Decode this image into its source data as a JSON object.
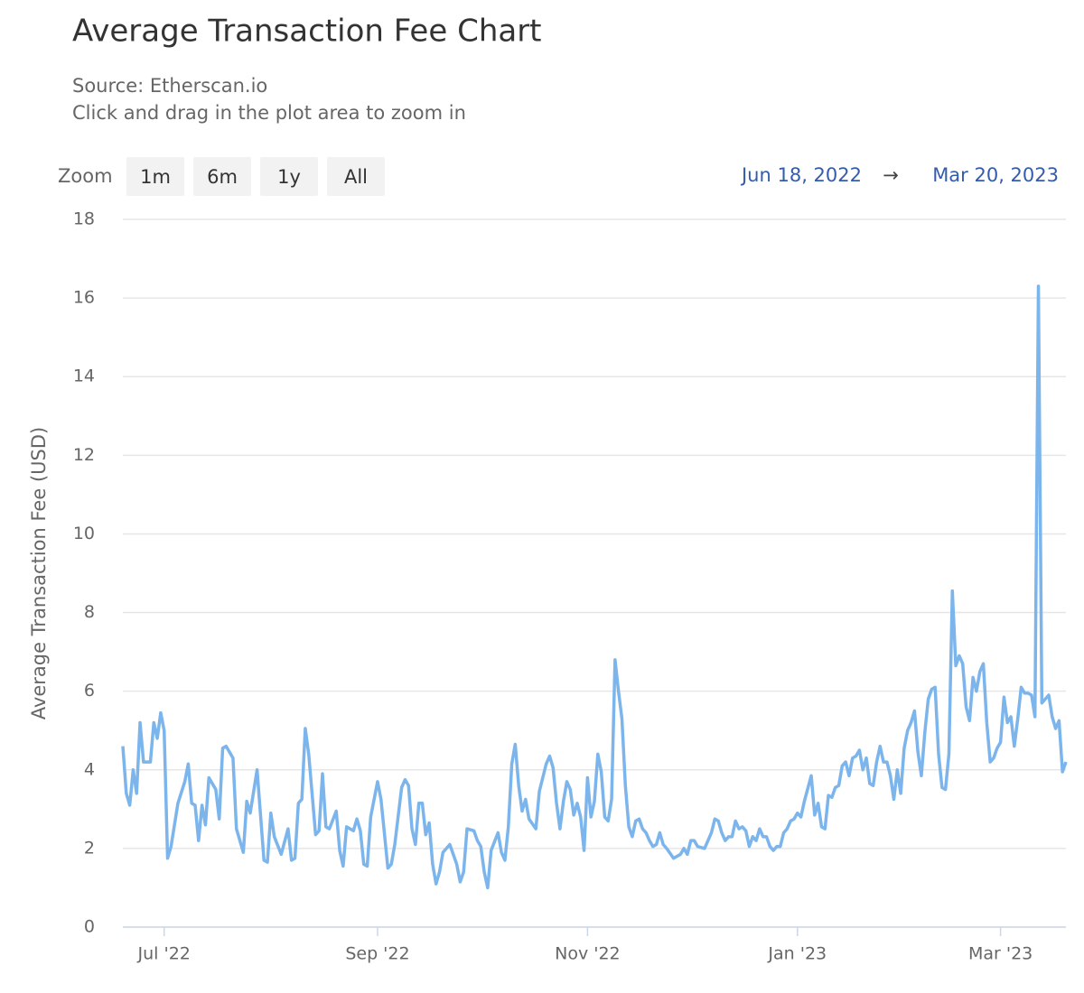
{
  "chart_data": {
    "type": "line",
    "title": "Average Transaction Fee Chart",
    "subtitle": [
      "Source: Etherscan.io",
      "Click and drag in the plot area to zoom in"
    ],
    "zoom_label": "Zoom",
    "zoom_buttons": [
      "1m",
      "6m",
      "1y",
      "All"
    ],
    "range_start": "Jun 18, 2022",
    "range_separator": "→",
    "range_end": "Mar 20, 2023",
    "y_label": "Average Transaction Fee (USD)",
    "color": "#7cb5ec",
    "grid": true,
    "xlim": [
      "2022-06-19",
      "2023-03-20"
    ],
    "xticks": [
      {
        "value": "2022-07-01",
        "label": "Jul '22"
      },
      {
        "value": "2022-09-01",
        "label": "Sep '22"
      },
      {
        "value": "2022-11-01",
        "label": "Nov '22"
      },
      {
        "value": "2023-01-01",
        "label": "Jan '23"
      },
      {
        "value": "2023-03-01",
        "label": "Mar '23"
      }
    ],
    "ylim": [
      0,
      18
    ],
    "yticks": [
      0,
      2,
      4,
      6,
      8,
      10,
      12,
      14,
      16,
      18
    ],
    "x": [
      "2022-06-19",
      "2022-06-20",
      "2022-06-21",
      "2022-06-22",
      "2022-06-23",
      "2022-06-24",
      "2022-06-25",
      "2022-06-27",
      "2022-06-28",
      "2022-06-29",
      "2022-06-30",
      "2022-07-01",
      "2022-07-02",
      "2022-07-03",
      "2022-07-05",
      "2022-07-07",
      "2022-07-08",
      "2022-07-09",
      "2022-07-10",
      "2022-07-11",
      "2022-07-12",
      "2022-07-13",
      "2022-07-14",
      "2022-07-16",
      "2022-07-17",
      "2022-07-18",
      "2022-07-19",
      "2022-07-21",
      "2022-07-22",
      "2022-07-24",
      "2022-07-25",
      "2022-07-26",
      "2022-07-28",
      "2022-07-30",
      "2022-07-31",
      "2022-08-01",
      "2022-08-02",
      "2022-08-04",
      "2022-08-06",
      "2022-08-07",
      "2022-08-08",
      "2022-08-09",
      "2022-08-10",
      "2022-08-11",
      "2022-08-12",
      "2022-08-14",
      "2022-08-15",
      "2022-08-16",
      "2022-08-17",
      "2022-08-18",
      "2022-08-20",
      "2022-08-21",
      "2022-08-22",
      "2022-08-23",
      "2022-08-25",
      "2022-08-26",
      "2022-08-27",
      "2022-08-28",
      "2022-08-29",
      "2022-08-30",
      "2022-09-01",
      "2022-09-02",
      "2022-09-04",
      "2022-09-05",
      "2022-09-06",
      "2022-09-08",
      "2022-09-09",
      "2022-09-10",
      "2022-09-11",
      "2022-09-12",
      "2022-09-13",
      "2022-09-14",
      "2022-09-15",
      "2022-09-16",
      "2022-09-17",
      "2022-09-18",
      "2022-09-19",
      "2022-09-20",
      "2022-09-22",
      "2022-09-23",
      "2022-09-24",
      "2022-09-25",
      "2022-09-26",
      "2022-09-27",
      "2022-09-29",
      "2022-09-30",
      "2022-10-01",
      "2022-10-02",
      "2022-10-03",
      "2022-10-04",
      "2022-10-06",
      "2022-10-07",
      "2022-10-08",
      "2022-10-09",
      "2022-10-10",
      "2022-10-11",
      "2022-10-12",
      "2022-10-13",
      "2022-10-14",
      "2022-10-15",
      "2022-10-17",
      "2022-10-18",
      "2022-10-20",
      "2022-10-21",
      "2022-10-22",
      "2022-10-23",
      "2022-10-24",
      "2022-10-25",
      "2022-10-26",
      "2022-10-27",
      "2022-10-28",
      "2022-10-29",
      "2022-10-30",
      "2022-10-31",
      "2022-11-01",
      "2022-11-02",
      "2022-11-03",
      "2022-11-04",
      "2022-11-05",
      "2022-11-06",
      "2022-11-07",
      "2022-11-08",
      "2022-11-09",
      "2022-11-10",
      "2022-11-11",
      "2022-11-12",
      "2022-11-13",
      "2022-11-14",
      "2022-11-15",
      "2022-11-16",
      "2022-11-17",
      "2022-11-18",
      "2022-11-19",
      "2022-11-20",
      "2022-11-21",
      "2022-11-22",
      "2022-11-23",
      "2022-11-24",
      "2022-11-26",
      "2022-11-28",
      "2022-11-29",
      "2022-11-30",
      "2022-12-01",
      "2022-12-02",
      "2022-12-03",
      "2022-12-05",
      "2022-12-06",
      "2022-12-07",
      "2022-12-08",
      "2022-12-09",
      "2022-12-10",
      "2022-12-11",
      "2022-12-12",
      "2022-12-13",
      "2022-12-14",
      "2022-12-15",
      "2022-12-16",
      "2022-12-17",
      "2022-12-18",
      "2022-12-19",
      "2022-12-20",
      "2022-12-21",
      "2022-12-22",
      "2022-12-23",
      "2022-12-24",
      "2022-12-25",
      "2022-12-26",
      "2022-12-27",
      "2022-12-28",
      "2022-12-29",
      "2022-12-30",
      "2022-12-31",
      "2023-01-01",
      "2023-01-02",
      "2023-01-03",
      "2023-01-05",
      "2023-01-06",
      "2023-01-07",
      "2023-01-08",
      "2023-01-09",
      "2023-01-10",
      "2023-01-11",
      "2023-01-12",
      "2023-01-13",
      "2023-01-14",
      "2023-01-15",
      "2023-01-16",
      "2023-01-17",
      "2023-01-18",
      "2023-01-19",
      "2023-01-20",
      "2023-01-21",
      "2023-01-22",
      "2023-01-23",
      "2023-01-24",
      "2023-01-25",
      "2023-01-26",
      "2023-01-27",
      "2023-01-28",
      "2023-01-29",
      "2023-01-30",
      "2023-01-31",
      "2023-02-01",
      "2023-02-02",
      "2023-02-03",
      "2023-02-04",
      "2023-02-05",
      "2023-02-06",
      "2023-02-07",
      "2023-02-08",
      "2023-02-09",
      "2023-02-10",
      "2023-02-11",
      "2023-02-12",
      "2023-02-13",
      "2023-02-14",
      "2023-02-15",
      "2023-02-16",
      "2023-02-17",
      "2023-02-18",
      "2023-02-19",
      "2023-02-20",
      "2023-02-21",
      "2023-02-22",
      "2023-02-23",
      "2023-02-24",
      "2023-02-25",
      "2023-02-26",
      "2023-02-27",
      "2023-02-28",
      "2023-03-01",
      "2023-03-02",
      "2023-03-03",
      "2023-03-04",
      "2023-03-05",
      "2023-03-06",
      "2023-03-07",
      "2023-03-08",
      "2023-03-09",
      "2023-03-10",
      "2023-03-11",
      "2023-03-12",
      "2023-03-13",
      "2023-03-14",
      "2023-03-15",
      "2023-03-16",
      "2023-03-17",
      "2023-03-18",
      "2023-03-19",
      "2023-03-20"
    ],
    "values": [
      4.6,
      3.4,
      3.1,
      4.0,
      3.4,
      5.2,
      4.2,
      4.2,
      5.2,
      4.8,
      5.45,
      5.0,
      1.75,
      2.05,
      3.15,
      3.7,
      4.15,
      3.15,
      3.1,
      2.2,
      3.1,
      2.6,
      3.8,
      3.5,
      2.75,
      4.55,
      4.6,
      4.3,
      2.5,
      1.9,
      3.2,
      2.9,
      4.0,
      1.7,
      1.65,
      2.9,
      2.3,
      1.85,
      2.5,
      1.7,
      1.75,
      3.15,
      3.25,
      5.05,
      4.4,
      2.35,
      2.45,
      3.9,
      2.55,
      2.5,
      2.95,
      1.95,
      1.55,
      2.55,
      2.45,
      2.75,
      2.45,
      1.6,
      1.55,
      2.8,
      3.7,
      3.25,
      1.5,
      1.6,
      2.1,
      3.55,
      3.75,
      3.6,
      2.5,
      2.1,
      3.15,
      3.15,
      2.35,
      2.65,
      1.6,
      1.1,
      1.4,
      1.9,
      2.1,
      1.85,
      1.6,
      1.15,
      1.4,
      2.5,
      2.45,
      2.2,
      2.05,
      1.4,
      1.0,
      1.95,
      2.4,
      1.9,
      1.7,
      2.55,
      4.15,
      4.65,
      3.6,
      2.95,
      3.25,
      2.75,
      2.5,
      3.45,
      4.15,
      4.35,
      4.05,
      3.15,
      2.5,
      3.2,
      3.7,
      3.5,
      2.85,
      3.15,
      2.8,
      1.95,
      3.8,
      2.8,
      3.2,
      4.4,
      3.95,
      2.8,
      2.7,
      3.25,
      6.8,
      6.0,
      5.3,
      3.6,
      2.55,
      2.3,
      2.7,
      2.75,
      2.5,
      2.4,
      2.2,
      2.05,
      2.1,
      2.4,
      2.1,
      2.0,
      1.75,
      1.85,
      2.0,
      1.85,
      2.2,
      2.2,
      2.05,
      2.0,
      2.2,
      2.4,
      2.75,
      2.7,
      2.4,
      2.2,
      2.3,
      2.3,
      2.7,
      2.5,
      2.55,
      2.45,
      2.05,
      2.3,
      2.2,
      2.5,
      2.3,
      2.3,
      2.05,
      1.95,
      2.05,
      2.05,
      2.4,
      2.5,
      2.7,
      2.75,
      2.9,
      2.8,
      3.2,
      3.85,
      2.85,
      3.15,
      2.55,
      2.5,
      3.35,
      3.3,
      3.55,
      3.6,
      4.1,
      4.2,
      3.85,
      4.3,
      4.35,
      4.5,
      4.0,
      4.3,
      3.65,
      3.6,
      4.2,
      4.6,
      4.2,
      4.2,
      3.85,
      3.25,
      4.0,
      3.4,
      4.55,
      5.0,
      5.2,
      5.5,
      4.45,
      3.85,
      4.95,
      5.8,
      6.05,
      6.1,
      4.4,
      3.55,
      3.5,
      4.4,
      8.55,
      6.65,
      6.9,
      6.7,
      5.6,
      5.25,
      6.35,
      6.0,
      6.5,
      6.7,
      5.2,
      4.2,
      4.3,
      4.55,
      4.7,
      5.85,
      5.2,
      5.35,
      4.6,
      5.3,
      6.1,
      5.95,
      5.95,
      5.9,
      5.35,
      16.3,
      5.7,
      5.8,
      5.9,
      5.35,
      5.05,
      5.25,
      3.95,
      4.2
    ]
  }
}
